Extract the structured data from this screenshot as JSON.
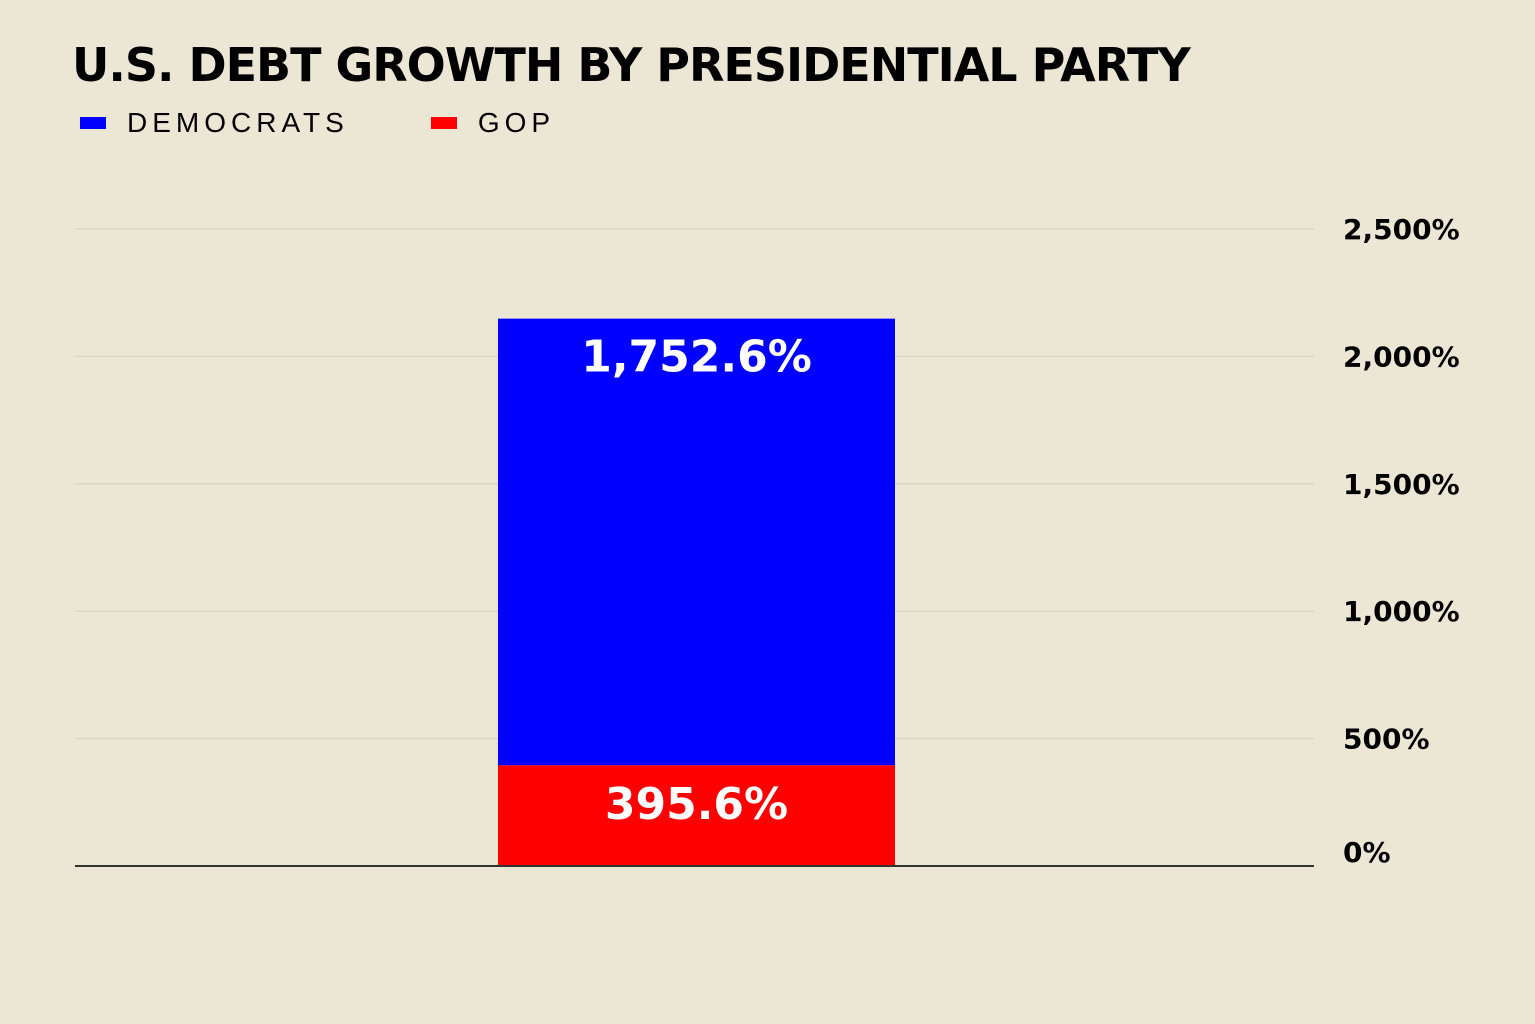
{
  "chart_data": {
    "type": "bar",
    "stacked": true,
    "title": "U.S. DEBT GROWTH BY PRESIDENTIAL PARTY",
    "xlabel": "",
    "ylabel": "",
    "categories": [
      ""
    ],
    "series": [
      {
        "name": "GOP",
        "values": [
          395.6
        ],
        "color": "#ff0000",
        "data_label": "395.6%"
      },
      {
        "name": "DEMOCRATS",
        "values": [
          1752.6
        ],
        "color": "#0000ff",
        "data_label": "1,752.6%"
      }
    ],
    "legend_order": [
      "DEMOCRATS",
      "GOP"
    ],
    "legend_position": "top-left",
    "y_axis_position": "right",
    "ylim": [
      0,
      2500
    ],
    "yticks": [
      0,
      500,
      1000,
      1500,
      2000,
      2500
    ],
    "ytick_labels": [
      "0%",
      "500%",
      "1,000%",
      "1,500%",
      "2,000%",
      "2,500%"
    ],
    "grid": true,
    "background_color": "#ece6d4"
  }
}
